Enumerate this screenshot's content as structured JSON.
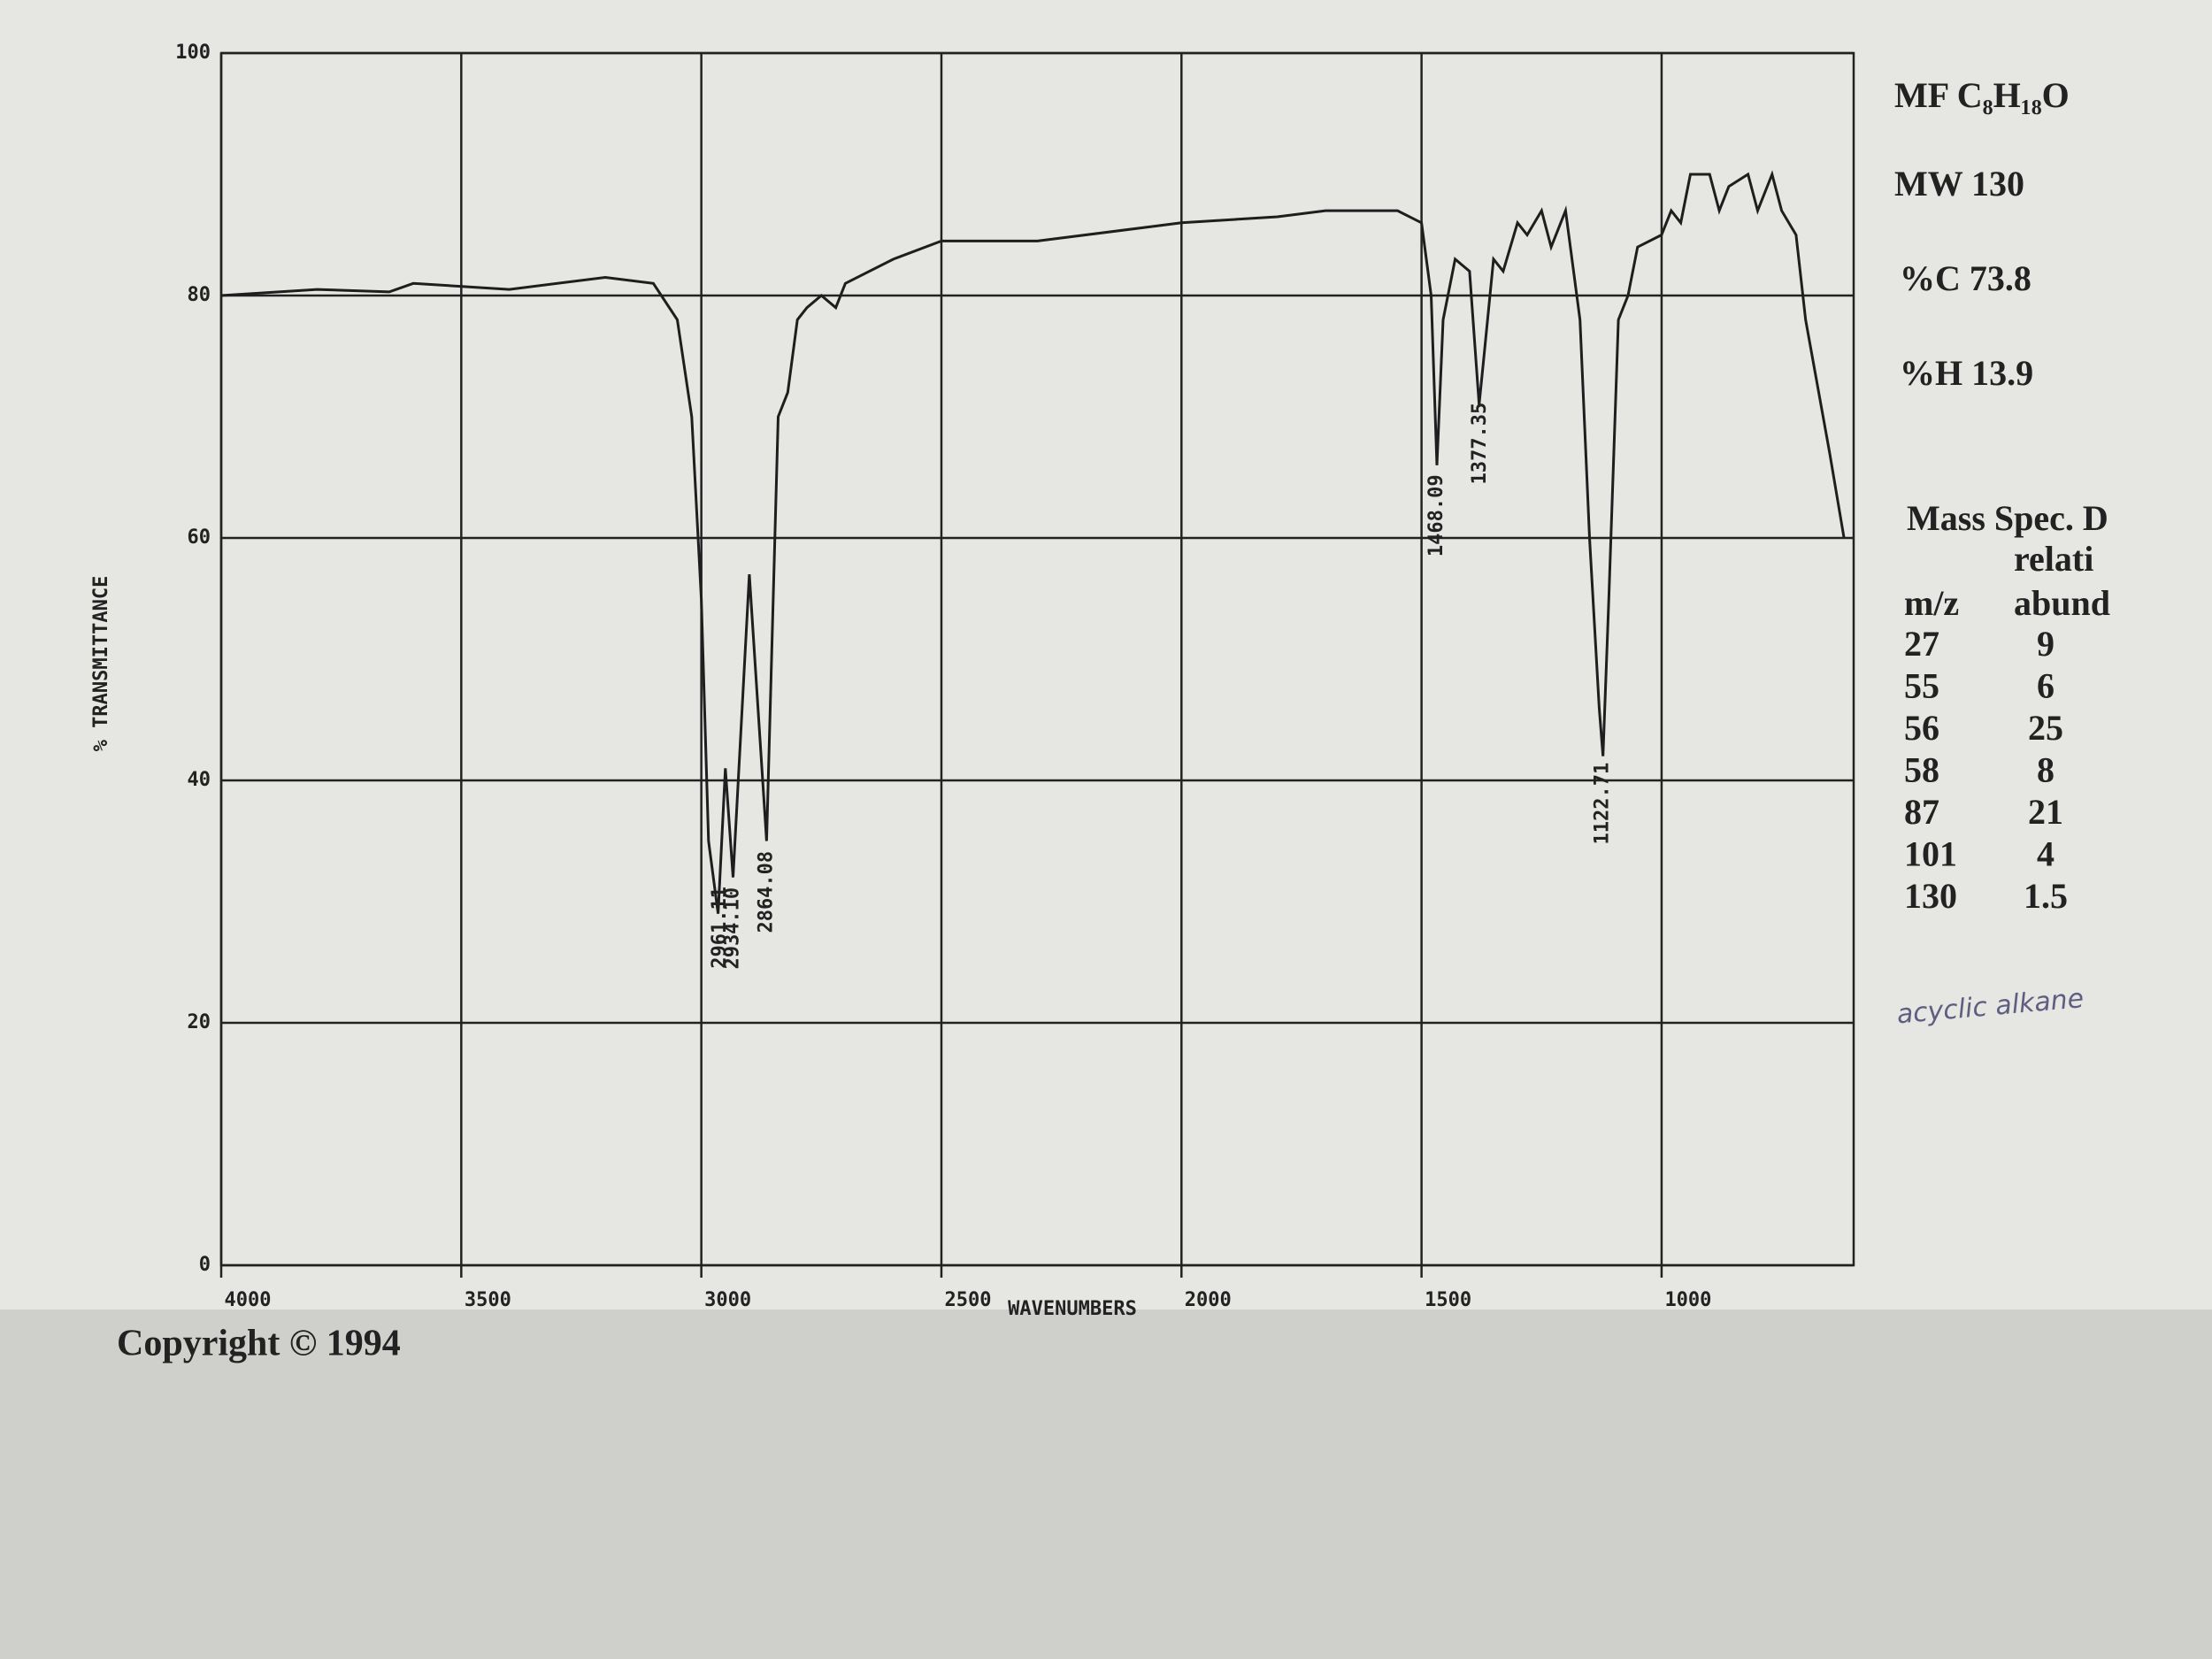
{
  "chart_data": {
    "type": "line",
    "color": "#1e1e1e",
    "xlabel": "WAVENUMBERS",
    "ylabel": "% TRANSMITTANCE",
    "xlim": [
      4000,
      600
    ],
    "ylim": [
      0,
      100
    ],
    "xticks": [
      4000,
      3500,
      3000,
      2500,
      2000,
      1500,
      1000
    ],
    "yticks": [
      0,
      20,
      40,
      60,
      80,
      100
    ],
    "grid": true,
    "x": [
      4000,
      3800,
      3650,
      3600,
      3400,
      3200,
      3100,
      3050,
      3020,
      3000,
      2985,
      2965,
      2950,
      2934,
      2900,
      2864,
      2840,
      2820,
      2800,
      2780,
      2750,
      2720,
      2700,
      2600,
      2500,
      2300,
      2000,
      1800,
      1700,
      1550,
      1500,
      1480,
      1468,
      1455,
      1430,
      1400,
      1380,
      1370,
      1350,
      1330,
      1300,
      1280,
      1250,
      1230,
      1200,
      1170,
      1150,
      1130,
      1122,
      1110,
      1090,
      1070,
      1050,
      1000,
      980,
      960,
      940,
      900,
      880,
      860,
      820,
      800,
      770,
      750,
      720,
      700,
      650,
      620
    ],
    "values": [
      80,
      80.5,
      80.3,
      81,
      80.5,
      81.5,
      81,
      78,
      70,
      55,
      35,
      29,
      41,
      32,
      57,
      35,
      70,
      72,
      78,
      79,
      80,
      79,
      81,
      83,
      84.5,
      84.5,
      86,
      86.5,
      87,
      87,
      86,
      80,
      66,
      78,
      83,
      82,
      71,
      75,
      83,
      82,
      86,
      85,
      87,
      84,
      87,
      78,
      60,
      46,
      42,
      55,
      78,
      80,
      84,
      85,
      87,
      86,
      90,
      90,
      87,
      89,
      90,
      87,
      90,
      87,
      85,
      78,
      67,
      60
    ],
    "annotations": [
      {
        "x": 2961.11,
        "label": "2961.11"
      },
      {
        "x": 2934.1,
        "label": "2934.10"
      },
      {
        "x": 2864.08,
        "label": "2864.08"
      },
      {
        "x": 1468.09,
        "label": "1468.09"
      },
      {
        "x": 1377.35,
        "label": "1377.35"
      },
      {
        "x": 1122.71,
        "label": "1122.71"
      }
    ]
  },
  "info": {
    "formula": "MF C₈H₁₈O",
    "weight": "MW 130",
    "carbon": "%C 73.8",
    "hydrogen": "%H 13.9"
  },
  "mass_spec": {
    "title": "Mass Spec. D",
    "header_top": "relati",
    "header": [
      "m/z",
      "abund"
    ],
    "rows": [
      [
        "27",
        "9"
      ],
      [
        "55",
        "6"
      ],
      [
        "56",
        "25"
      ],
      [
        "58",
        "8"
      ],
      [
        "87",
        "21"
      ],
      [
        "101",
        "4"
      ],
      [
        "130",
        "1.5"
      ]
    ]
  },
  "copyright": "Copyright © 1994",
  "note": "acyclic alkane"
}
